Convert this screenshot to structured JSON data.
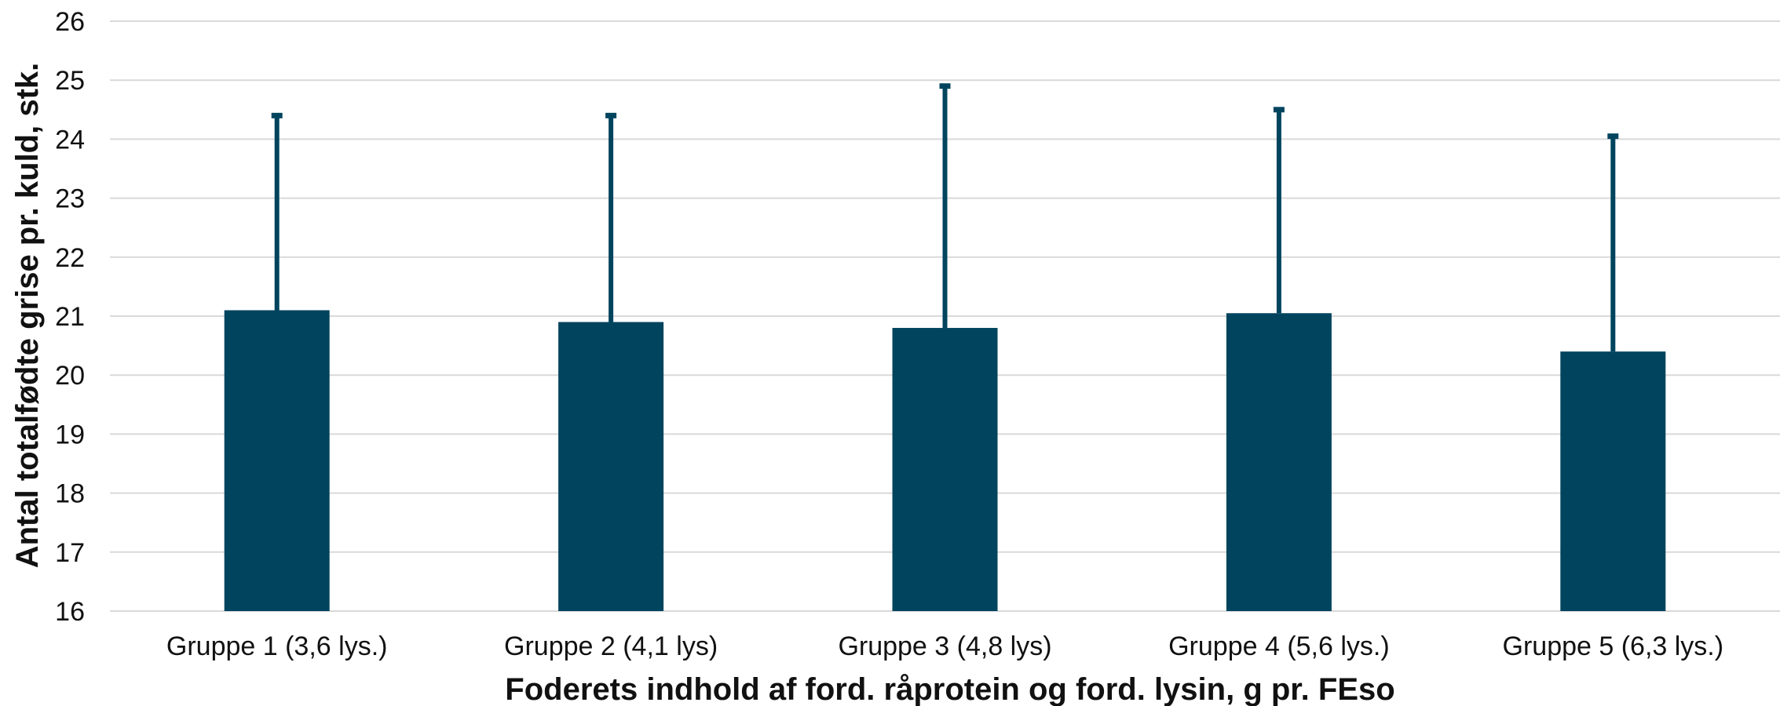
{
  "chart_data": {
    "type": "bar",
    "categories": [
      "Gruppe 1 (3,6 lys.)",
      "Gruppe 2 (4,1 lys)",
      "Gruppe 3 (4,8 lys)",
      "Gruppe 4 (5,6 lys.)",
      "Gruppe 5 (6,3 lys.)"
    ],
    "values": [
      21.1,
      20.9,
      20.8,
      21.05,
      20.4
    ],
    "error_upper": [
      24.4,
      24.4,
      24.9,
      24.5,
      24.05
    ],
    "xlabel": "Foderets indhold af ford. råprotein og ford. lysin, g pr. FEso",
    "ylabel": "Antal totalfødte grise pr. kuld, stk.",
    "ylim": [
      16,
      26
    ],
    "yticks": [
      16,
      17,
      18,
      19,
      20,
      21,
      22,
      23,
      24,
      25,
      26
    ],
    "grid": true,
    "legend": "none",
    "colors": {
      "bar": "#00445e",
      "error_bar": "#00445e",
      "grid": "#d9d9d9",
      "text": "#111111"
    }
  }
}
